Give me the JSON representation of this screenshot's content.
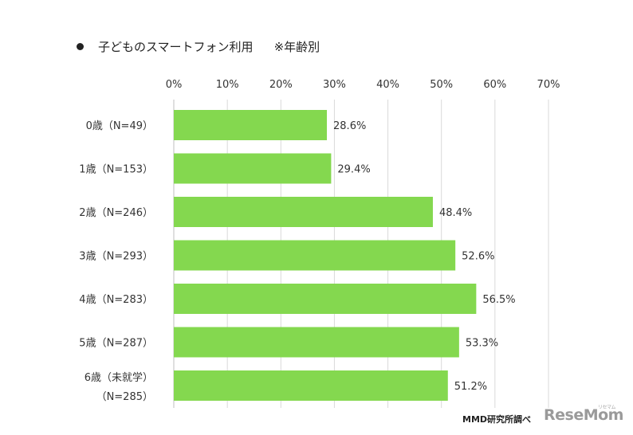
{
  "title": "子どものスマートフォン利用",
  "title_note": "※年齢別",
  "source": "MMD研究所調べ",
  "logo": "ReseMom",
  "logo_sub": "リセマム",
  "chart_data": {
    "type": "bar",
    "orientation": "horizontal",
    "categories": [
      [
        "0歳（N=49）"
      ],
      [
        "1歳（N=153）"
      ],
      [
        "2歳（N=246）"
      ],
      [
        "3歳（N=293）"
      ],
      [
        "4歳（N=283）"
      ],
      [
        "5歳（N=287）"
      ],
      [
        "6歳（未就学）",
        "（N=285）"
      ]
    ],
    "values": [
      28.6,
      29.4,
      48.4,
      52.6,
      56.5,
      53.3,
      51.2
    ],
    "value_labels": [
      "28.6%",
      "29.4%",
      "48.4%",
      "52.6%",
      "56.5%",
      "53.3%",
      "51.2%"
    ],
    "xlim": [
      0,
      70
    ],
    "x_ticks": [
      0,
      10,
      20,
      30,
      40,
      50,
      60,
      70
    ],
    "x_tick_labels": [
      "0%",
      "10%",
      "20%",
      "30%",
      "40%",
      "50%",
      "60%",
      "70%"
    ],
    "axis_position": "top",
    "grid": true,
    "bar_color": "#84d84f",
    "grid_color": "#d9d9d9"
  }
}
